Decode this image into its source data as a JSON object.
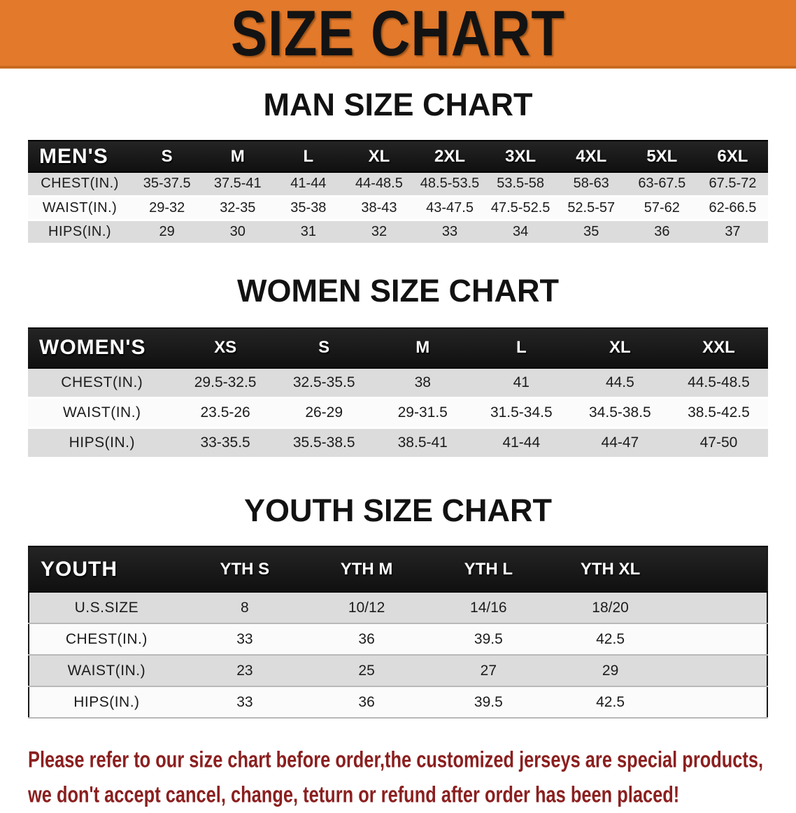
{
  "banner": {
    "title": "SIZE CHART"
  },
  "colors": {
    "banner_bg": "#E2792B",
    "header_bar_bg": "#161616",
    "header_bar_text": "#FFFFFF",
    "row_gray": "#DCDCDC",
    "row_white": "#FBFBFB",
    "heading_text": "#121212",
    "footer_text": "#8B1F1F"
  },
  "sections": [
    {
      "heading": "MAN SIZE CHART",
      "label_header": "MEN'S",
      "size_headers": [
        "S",
        "M",
        "L",
        "XL",
        "2XL",
        "3XL",
        "4XL",
        "5XL",
        "6XL"
      ],
      "rows": [
        {
          "label": "CHEST(IN.)",
          "values": [
            "35-37.5",
            "37.5-41",
            "41-44",
            "44-48.5",
            "48.5-53.5",
            "53.5-58",
            "58-63",
            "63-67.5",
            "67.5-72"
          ]
        },
        {
          "label": "WAIST(IN.)",
          "values": [
            "29-32",
            "32-35",
            "35-38",
            "38-43",
            "43-47.5",
            "47.5-52.5",
            "52.5-57",
            "57-62",
            "62-66.5"
          ]
        },
        {
          "label": "HIPS(IN.)",
          "values": [
            "29",
            "30",
            "31",
            "32",
            "33",
            "34",
            "35",
            "36",
            "37"
          ]
        }
      ]
    },
    {
      "heading": "WOMEN SIZE CHART",
      "label_header": "WOMEN'S",
      "size_headers": [
        "XS",
        "S",
        "M",
        "L",
        "XL",
        "XXL"
      ],
      "rows": [
        {
          "label": "CHEST(IN.)",
          "values": [
            "29.5-32.5",
            "32.5-35.5",
            "38",
            "41",
            "44.5",
            "44.5-48.5"
          ]
        },
        {
          "label": "WAIST(IN.)",
          "values": [
            "23.5-26",
            "26-29",
            "29-31.5",
            "31.5-34.5",
            "34.5-38.5",
            "38.5-42.5"
          ]
        },
        {
          "label": "HIPS(IN.)",
          "values": [
            "33-35.5",
            "35.5-38.5",
            "38.5-41",
            "41-44",
            "44-47",
            "47-50"
          ]
        }
      ]
    },
    {
      "heading": "YOUTH SIZE CHART",
      "label_header": "YOUTH",
      "size_headers": [
        "YTH S",
        "YTH M",
        "YTH L",
        "YTH XL"
      ],
      "rows": [
        {
          "label": "U.S.SIZE",
          "values": [
            "8",
            "10/12",
            "14/16",
            "18/20"
          ]
        },
        {
          "label": "CHEST(IN.)",
          "values": [
            "33",
            "36",
            "39.5",
            "42.5"
          ]
        },
        {
          "label": "WAIST(IN.)",
          "values": [
            "23",
            "25",
            "27",
            "29"
          ]
        },
        {
          "label": "HIPS(IN.)",
          "values": [
            "33",
            "36",
            "39.5",
            "42.5"
          ]
        }
      ]
    }
  ],
  "footer": {
    "line1": "Please refer to our size chart before order,the customized jerseys are special products,",
    "line2": "we don't accept cancel, change, teturn or refund after order has been placed!"
  }
}
